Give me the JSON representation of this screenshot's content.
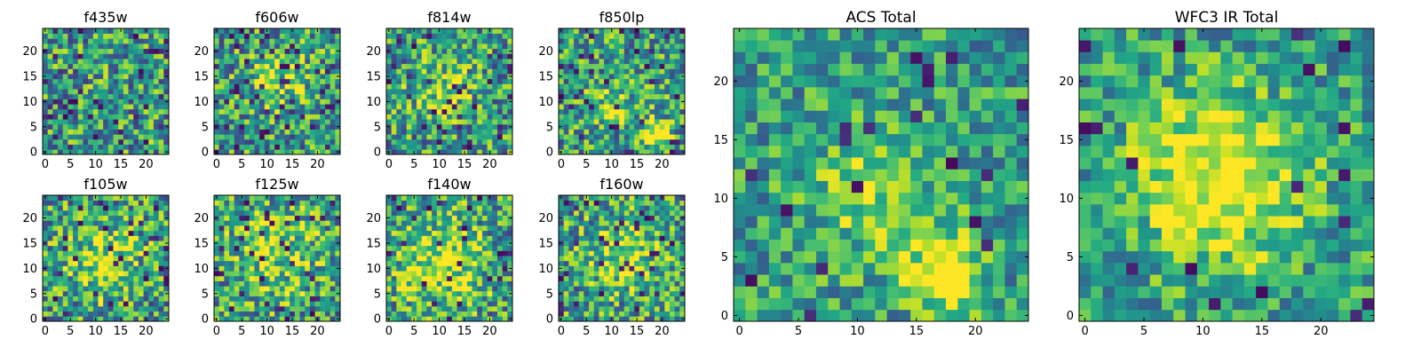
{
  "figure": {
    "background": "#ffffff",
    "colormap": "viridis"
  },
  "chart_data": [
    {
      "type": "heatmap",
      "title": "f435w",
      "xlim": [
        0,
        25
      ],
      "ylim": [
        0,
        25
      ],
      "xticks": [
        0,
        5,
        10,
        15,
        20
      ],
      "yticks": [
        0,
        5,
        10,
        15,
        20
      ],
      "grid_size": 25,
      "seed": 11,
      "blobs": [],
      "dark_density": 0.07
    },
    {
      "type": "heatmap",
      "title": "f606w",
      "xlim": [
        0,
        25
      ],
      "ylim": [
        0,
        25
      ],
      "xticks": [
        0,
        5,
        10,
        15,
        20
      ],
      "yticks": [
        0,
        5,
        10,
        15,
        20
      ],
      "grid_size": 25,
      "seed": 23,
      "blobs": [
        [
          13,
          15,
          4,
          0.25
        ]
      ],
      "dark_density": 0.07
    },
    {
      "type": "heatmap",
      "title": "f814w",
      "xlim": [
        0,
        25
      ],
      "ylim": [
        0,
        25
      ],
      "xticks": [
        0,
        5,
        10,
        15,
        20
      ],
      "yticks": [
        0,
        5,
        10,
        15,
        20
      ],
      "grid_size": 25,
      "seed": 37,
      "blobs": [
        [
          11,
          13,
          4,
          0.3
        ]
      ],
      "dark_density": 0.05
    },
    {
      "type": "heatmap",
      "title": "f850lp",
      "xlim": [
        0,
        25
      ],
      "ylim": [
        0,
        25
      ],
      "xticks": [
        0,
        5,
        10,
        15,
        20
      ],
      "yticks": [
        0,
        5,
        10,
        15,
        20
      ],
      "grid_size": 25,
      "seed": 41,
      "blobs": [
        [
          19,
          4,
          2,
          0.6
        ],
        [
          11,
          10,
          3,
          0.25
        ]
      ],
      "dark_density": 0.05
    },
    {
      "type": "heatmap",
      "title": "f105w",
      "xlim": [
        0,
        25
      ],
      "ylim": [
        0,
        25
      ],
      "xticks": [
        0,
        5,
        10,
        15,
        20
      ],
      "yticks": [
        0,
        5,
        10,
        15,
        20
      ],
      "grid_size": 25,
      "seed": 53,
      "blobs": [
        [
          12,
          12,
          5,
          0.35
        ]
      ],
      "dark_density": 0.05
    },
    {
      "type": "heatmap",
      "title": "f125w",
      "xlim": [
        0,
        25
      ],
      "ylim": [
        0,
        25
      ],
      "xticks": [
        0,
        5,
        10,
        15,
        20
      ],
      "yticks": [
        0,
        5,
        10,
        15,
        20
      ],
      "grid_size": 25,
      "seed": 67,
      "blobs": [
        [
          12,
          14,
          6,
          0.3
        ]
      ],
      "dark_density": 0.05
    },
    {
      "type": "heatmap",
      "title": "f140w",
      "xlim": [
        0,
        25
      ],
      "ylim": [
        0,
        25
      ],
      "xticks": [
        0,
        5,
        10,
        15,
        20
      ],
      "yticks": [
        0,
        5,
        10,
        15,
        20
      ],
      "grid_size": 25,
      "seed": 71,
      "blobs": [
        [
          11,
          12,
          6,
          0.4
        ]
      ],
      "dark_density": 0.04
    },
    {
      "type": "heatmap",
      "title": "f160w",
      "xlim": [
        0,
        25
      ],
      "ylim": [
        0,
        25
      ],
      "xticks": [
        0,
        5,
        10,
        15,
        20
      ],
      "yticks": [
        0,
        5,
        10,
        15,
        20
      ],
      "grid_size": 25,
      "seed": 83,
      "blobs": [
        [
          13,
          13,
          5,
          0.35
        ]
      ],
      "dark_density": 0.05
    },
    {
      "type": "heatmap",
      "title": "ACS Total",
      "xlim": [
        0,
        25
      ],
      "ylim": [
        0,
        25
      ],
      "xticks": [
        0,
        5,
        10,
        15,
        20
      ],
      "yticks": [
        0,
        5,
        10,
        15,
        20
      ],
      "grid_size": 25,
      "seed": 97,
      "blobs": [
        [
          18,
          4,
          2,
          0.7
        ],
        [
          12,
          11,
          4,
          0.3
        ]
      ],
      "dark_density": 0.03
    },
    {
      "type": "heatmap",
      "title": "WFC3 IR Total",
      "xlim": [
        0,
        25
      ],
      "ylim": [
        0,
        25
      ],
      "xticks": [
        0,
        5,
        10,
        15,
        20
      ],
      "yticks": [
        0,
        5,
        10,
        15,
        20
      ],
      "grid_size": 25,
      "seed": 109,
      "blobs": [
        [
          12,
          12,
          5,
          0.55
        ]
      ],
      "dark_density": 0.02
    }
  ]
}
